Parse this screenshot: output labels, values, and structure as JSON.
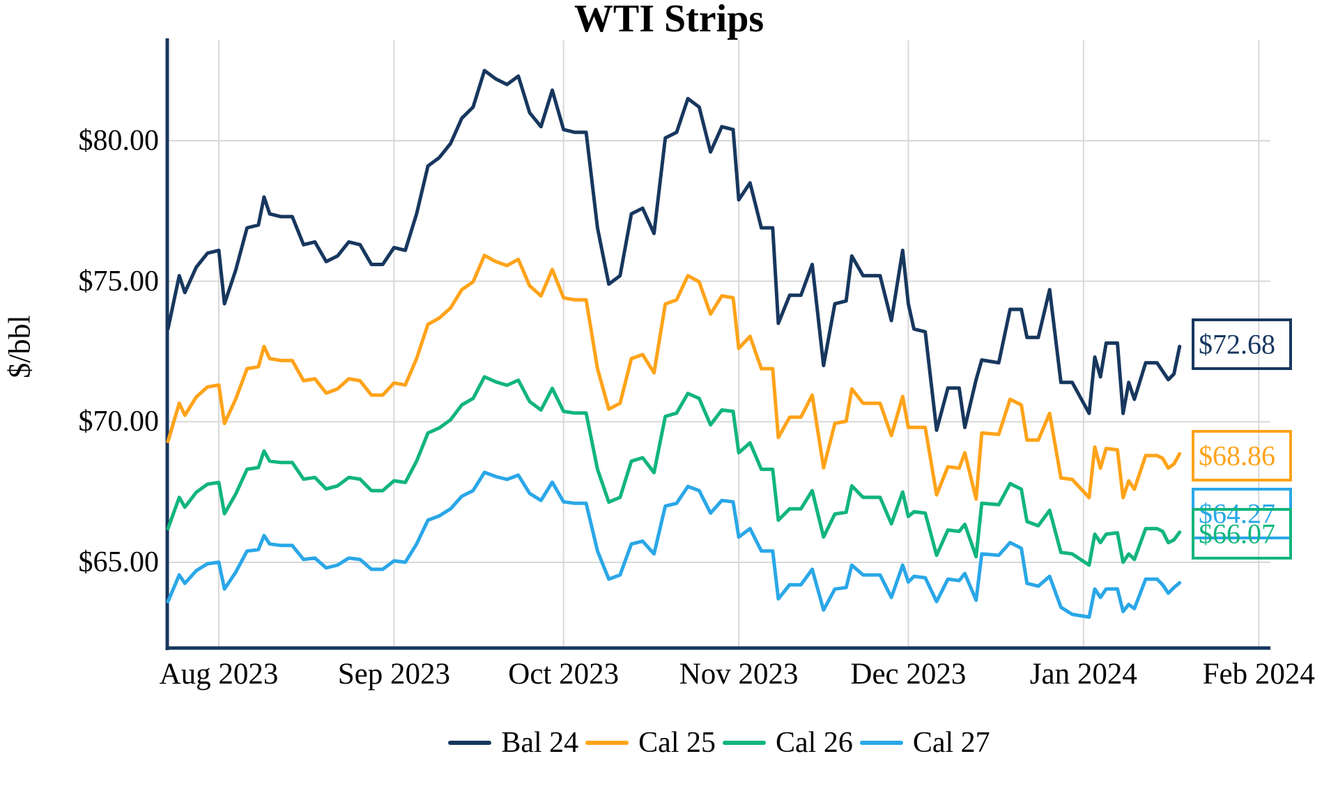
{
  "title": "WTI Strips",
  "y_axis": {
    "label": "$/bbl",
    "ticks": [
      {
        "label": "$80.00",
        "value": 80
      },
      {
        "label": "$75.00",
        "value": 75
      },
      {
        "label": "$70.00",
        "value": 70
      },
      {
        "label": "$65.00",
        "value": 65
      }
    ]
  },
  "x_axis": {
    "ticks": [
      {
        "label": "Aug 2023",
        "day": 9
      },
      {
        "label": "Sep 2023",
        "day": 40
      },
      {
        "label": "Oct 2023",
        "day": 70
      },
      {
        "label": "Nov 2023",
        "day": 101
      },
      {
        "label": "Dec 2023",
        "day": 131
      },
      {
        "label": "Jan 2024",
        "day": 162
      },
      {
        "label": "Feb 2024",
        "day": 193
      }
    ]
  },
  "colors": {
    "axis": "#17375E",
    "grid": "#D8D8D8",
    "background": "#FFFFFF",
    "text": "#000000"
  },
  "chart_data": {
    "type": "line",
    "title": "WTI Strips",
    "xlabel": "",
    "ylabel": "$/bbl",
    "ylim": [
      61.9,
      83.5
    ],
    "xlim_days": [
      0,
      195
    ],
    "x_description": "calendar days from first plotted date (late July 2023); month gridlines at Aug 2023 through Feb 2024",
    "grid": true,
    "legend_position": "bottom",
    "days": [
      0,
      2,
      3,
      5,
      7,
      9,
      10,
      12,
      14,
      16,
      17,
      18,
      20,
      22,
      24,
      26,
      28,
      30,
      32,
      34,
      36,
      38,
      40,
      42,
      44,
      46,
      48,
      50,
      52,
      54,
      56,
      58,
      60,
      62,
      64,
      66,
      68,
      70,
      72,
      74,
      76,
      78,
      80,
      82,
      84,
      86,
      88,
      90,
      92,
      94,
      96,
      98,
      100,
      101,
      103,
      105,
      107,
      108,
      110,
      112,
      114,
      116,
      118,
      120,
      121,
      123,
      126,
      128,
      130,
      131,
      132,
      134,
      136,
      138,
      140,
      141,
      143,
      144,
      147,
      149,
      151,
      152,
      154,
      156,
      158,
      160,
      163,
      164,
      165,
      166,
      168,
      169,
      170,
      171,
      173,
      175,
      176,
      177,
      178,
      179
    ],
    "series": [
      {
        "name": "Bal 24",
        "color": "#17375E",
        "end_label": "$72.68",
        "end_value": 72.68,
        "values": [
          73.3,
          75.2,
          74.6,
          75.5,
          76.0,
          76.1,
          74.2,
          75.4,
          76.9,
          77.0,
          78.0,
          77.4,
          77.3,
          77.3,
          76.3,
          76.4,
          75.7,
          75.9,
          76.4,
          76.3,
          75.6,
          75.6,
          76.2,
          76.1,
          77.4,
          79.1,
          79.4,
          79.9,
          80.8,
          81.2,
          82.5,
          82.2,
          82.0,
          82.3,
          81.0,
          80.5,
          81.8,
          80.4,
          80.3,
          80.3,
          76.9,
          74.9,
          75.2,
          77.4,
          77.6,
          76.7,
          80.1,
          80.3,
          81.5,
          81.2,
          79.6,
          80.5,
          80.4,
          77.9,
          78.5,
          76.9,
          76.9,
          73.5,
          74.5,
          74.5,
          75.6,
          72.0,
          74.2,
          74.3,
          75.9,
          75.2,
          75.2,
          73.6,
          76.1,
          74.2,
          73.3,
          73.2,
          69.7,
          71.2,
          71.2,
          69.8,
          71.5,
          72.2,
          72.1,
          74.0,
          74.0,
          73.0,
          73.0,
          74.7,
          71.4,
          71.4,
          70.3,
          72.3,
          71.6,
          72.8,
          72.8,
          70.3,
          71.4,
          70.8,
          72.1,
          72.1,
          71.8,
          71.5,
          71.7,
          72.68
        ]
      },
      {
        "name": "Cal 25",
        "color": "#FFA31A",
        "end_label": "$68.86",
        "end_value": 68.86,
        "values": [
          69.3,
          70.66,
          70.23,
          70.88,
          71.24,
          71.31,
          69.94,
          70.81,
          71.89,
          71.96,
          72.68,
          72.25,
          72.18,
          72.18,
          71.46,
          71.53,
          71.02,
          71.17,
          71.53,
          71.46,
          70.95,
          70.95,
          71.38,
          71.31,
          72.25,
          73.47,
          73.69,
          74.05,
          74.7,
          74.98,
          75.92,
          75.7,
          75.56,
          75.78,
          74.84,
          74.48,
          75.42,
          74.41,
          74.34,
          74.34,
          71.89,
          70.45,
          70.66,
          72.25,
          72.39,
          71.74,
          74.19,
          74.34,
          75.2,
          74.98,
          73.83,
          74.48,
          74.41,
          72.61,
          73.04,
          71.89,
          71.89,
          69.44,
          70.16,
          70.16,
          70.95,
          68.36,
          69.94,
          70.02,
          71.17,
          70.66,
          70.66,
          69.51,
          70.9,
          69.8,
          69.8,
          69.8,
          67.4,
          68.4,
          68.35,
          68.9,
          67.25,
          69.6,
          69.55,
          70.8,
          70.6,
          69.35,
          69.35,
          70.3,
          68.0,
          67.95,
          67.3,
          69.1,
          68.35,
          69.05,
          69.0,
          67.3,
          67.9,
          67.6,
          68.8,
          68.8,
          68.7,
          68.35,
          68.5,
          68.86
        ]
      },
      {
        "name": "Cal 26",
        "color": "#12B57C",
        "end_label": "$66.07",
        "end_value": 66.07,
        "values": [
          66.2,
          67.31,
          66.96,
          67.49,
          67.78,
          67.84,
          66.73,
          67.43,
          68.31,
          68.37,
          68.96,
          68.6,
          68.55,
          68.55,
          67.96,
          68.02,
          67.61,
          67.72,
          68.02,
          67.96,
          67.55,
          67.55,
          67.9,
          67.84,
          68.6,
          69.6,
          69.78,
          70.07,
          70.6,
          70.83,
          71.6,
          71.42,
          71.3,
          71.48,
          70.72,
          70.42,
          71.19,
          70.37,
          70.31,
          70.31,
          68.31,
          67.14,
          67.31,
          68.6,
          68.72,
          68.19,
          70.19,
          70.31,
          71.01,
          70.83,
          69.89,
          70.42,
          70.37,
          68.9,
          69.25,
          68.31,
          68.31,
          66.5,
          66.9,
          66.9,
          67.55,
          65.9,
          66.72,
          66.78,
          67.72,
          67.31,
          67.31,
          66.37,
          67.5,
          66.63,
          66.8,
          66.75,
          65.25,
          66.15,
          66.1,
          66.35,
          65.2,
          67.1,
          67.05,
          67.8,
          67.6,
          66.45,
          66.3,
          66.85,
          65.35,
          65.3,
          64.9,
          66.0,
          65.7,
          66.0,
          66.05,
          65.0,
          65.3,
          65.1,
          66.2,
          66.2,
          66.1,
          65.7,
          65.8,
          66.07
        ]
      },
      {
        "name": "Cal 27",
        "color": "#2AA7E8",
        "end_label": "$64.27",
        "end_value": 64.27,
        "values": [
          63.6,
          64.55,
          64.25,
          64.7,
          64.95,
          65.0,
          64.05,
          64.65,
          65.4,
          65.45,
          65.95,
          65.65,
          65.6,
          65.6,
          65.1,
          65.15,
          64.8,
          64.9,
          65.15,
          65.1,
          64.75,
          64.75,
          65.05,
          65.0,
          65.65,
          66.5,
          66.65,
          66.9,
          67.35,
          67.55,
          68.2,
          68.05,
          67.95,
          68.1,
          67.45,
          67.2,
          67.85,
          67.15,
          67.1,
          67.1,
          65.4,
          64.4,
          64.55,
          65.65,
          65.75,
          65.3,
          67.0,
          67.1,
          67.7,
          67.55,
          66.75,
          67.2,
          67.15,
          65.9,
          66.2,
          65.4,
          65.4,
          63.7,
          64.2,
          64.2,
          64.75,
          63.3,
          64.05,
          64.1,
          64.9,
          64.55,
          64.55,
          63.75,
          64.9,
          64.3,
          64.5,
          64.45,
          63.6,
          64.4,
          64.35,
          64.6,
          63.65,
          65.3,
          65.25,
          65.7,
          65.5,
          64.25,
          64.15,
          64.5,
          63.4,
          63.15,
          63.05,
          64.05,
          63.75,
          64.05,
          64.05,
          63.25,
          63.5,
          63.35,
          64.4,
          64.4,
          64.2,
          63.9,
          64.1,
          64.27
        ]
      }
    ]
  }
}
